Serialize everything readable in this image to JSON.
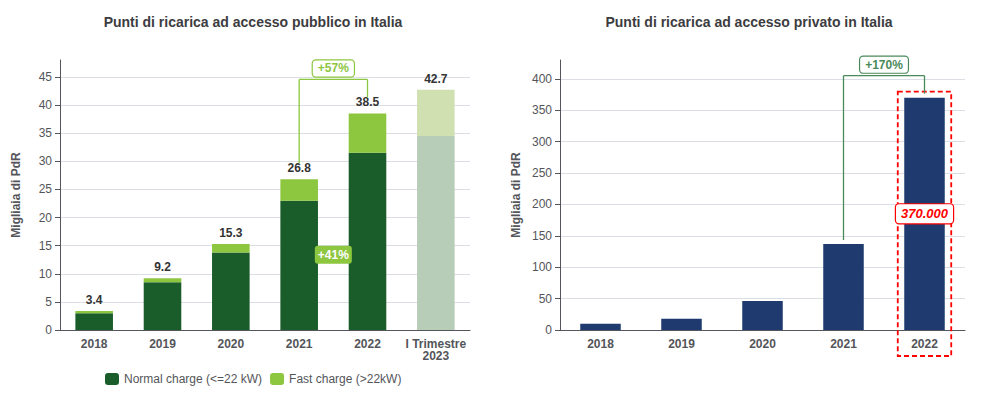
{
  "chart_data": [
    {
      "type": "bar",
      "title": "Punti di ricarica ad accesso pubblico in Italia",
      "ylabel": "Migliaia di PdR",
      "categories": [
        "2018",
        "2019",
        "2020",
        "2021",
        "2022",
        "I Trimestre\n2023"
      ],
      "stacked": true,
      "series": [
        {
          "name": "Normal charge (<=22 kW)",
          "color": "#1a5c2a",
          "colors": [
            "#1a5c2a",
            "#1a5c2a",
            "#1a5c2a",
            "#1a5c2a",
            "#1a5c2a",
            "#b8cdb8"
          ],
          "values": [
            3.0,
            8.5,
            13.8,
            23.0,
            31.5,
            34.5
          ]
        },
        {
          "name": "Fast charge (>22kW)",
          "color": "#8dc63f",
          "colors": [
            "#8dc63f",
            "#8dc63f",
            "#8dc63f",
            "#8dc63f",
            "#8dc63f",
            "#d0e0b0"
          ],
          "values": [
            0.4,
            0.7,
            1.5,
            3.8,
            7.0,
            8.2
          ]
        }
      ],
      "totals": [
        3.4,
        9.2,
        15.3,
        26.8,
        38.5,
        42.7
      ],
      "ylim": [
        0,
        48
      ],
      "yticks": [
        0,
        5,
        10,
        15,
        20,
        25,
        30,
        35,
        40,
        45
      ],
      "grid": true,
      "legend": "bottom",
      "annotations": [
        {
          "text": "+41%",
          "color": "#8dc63f"
        },
        {
          "text": "+57%",
          "color": "#8dc63f"
        }
      ]
    },
    {
      "type": "bar",
      "title": "Punti di ricarica ad accesso privato in Italia",
      "ylabel": "Migliaia di PdR",
      "categories": [
        "2018",
        "2019",
        "2020",
        "2021",
        "2022"
      ],
      "values": [
        10,
        18,
        46,
        137,
        370
      ],
      "color": "#1e3a6e",
      "ylim": [
        0,
        430
      ],
      "yticks": [
        0,
        50,
        100,
        150,
        200,
        250,
        300,
        350,
        400
      ],
      "grid": true,
      "legend": false,
      "annotations": [
        {
          "text": "+170%",
          "color": "#4a8a5a"
        },
        {
          "text": "370.000",
          "color": "red"
        }
      ]
    }
  ]
}
